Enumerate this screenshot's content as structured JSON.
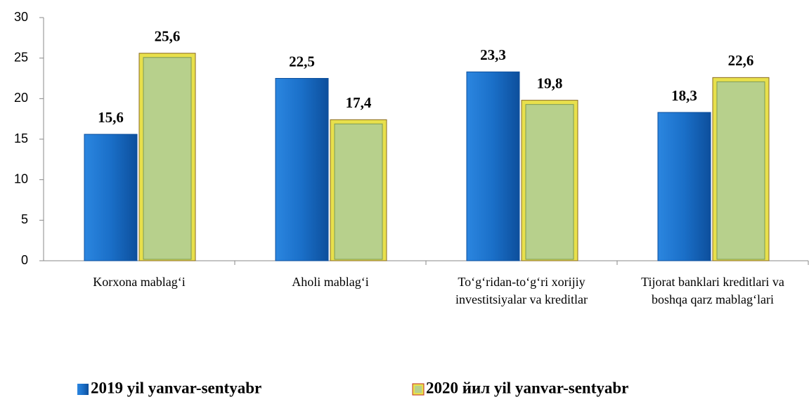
{
  "chart_data": {
    "type": "bar",
    "categories": [
      "Korxona mablag‘i",
      "Aholi mablag‘i",
      "To‘g‘ridan-to‘g‘ri xorijiy investitsiyalar va kreditlar",
      "Tijorat banklari kreditlari va boshqa qarz mablag‘lari"
    ],
    "series": [
      {
        "name": "2019 yil yanvar-sentyabr",
        "color": "#1a6fc8",
        "values": [
          15.6,
          22.5,
          23.3,
          18.3
        ],
        "value_labels": [
          "15,6",
          "22,5",
          "23,3",
          "18,3"
        ]
      },
      {
        "name": "2020 йил yil yanvar-sentyabr",
        "color": "#b7d08c",
        "values": [
          25.6,
          17.4,
          19.8,
          22.6
        ],
        "value_labels": [
          "25,6",
          "17,4",
          "19,8",
          "22,6"
        ]
      }
    ],
    "ylim": [
      0,
      30
    ],
    "yticks": [
      0,
      5,
      10,
      15,
      20,
      25,
      30
    ],
    "legend": "bottom"
  }
}
